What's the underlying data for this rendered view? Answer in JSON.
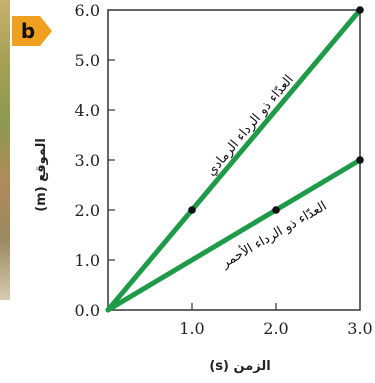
{
  "badge": {
    "text": "b",
    "color": "#f0a020"
  },
  "chart_data": {
    "type": "line",
    "xlabel": "الزمن (s)",
    "ylabel": "الموقع (m)",
    "xlim": [
      0,
      3.0
    ],
    "ylim": [
      0,
      6.0
    ],
    "x_ticks": [
      "1.0",
      "2.0",
      "3.0"
    ],
    "y_ticks": [
      "0.0",
      "1.0",
      "2.0",
      "3.0",
      "4.0",
      "5.0",
      "6.0"
    ],
    "grid": false,
    "line_color": "#1f9a48",
    "series": [
      {
        "name": "العدّاء ذو الرداء الرمادي",
        "x": [
          0,
          1.0,
          3.0
        ],
        "y": [
          0,
          2.0,
          6.0
        ],
        "points": [
          [
            1.0,
            2.0
          ],
          [
            3.0,
            6.0
          ]
        ]
      },
      {
        "name": "العدّاء ذو الرداء الأحمر",
        "x": [
          0,
          2.0,
          3.0
        ],
        "y": [
          0,
          2.0,
          3.0
        ],
        "points": [
          [
            2.0,
            2.0
          ],
          [
            3.0,
            3.0
          ]
        ]
      }
    ]
  }
}
